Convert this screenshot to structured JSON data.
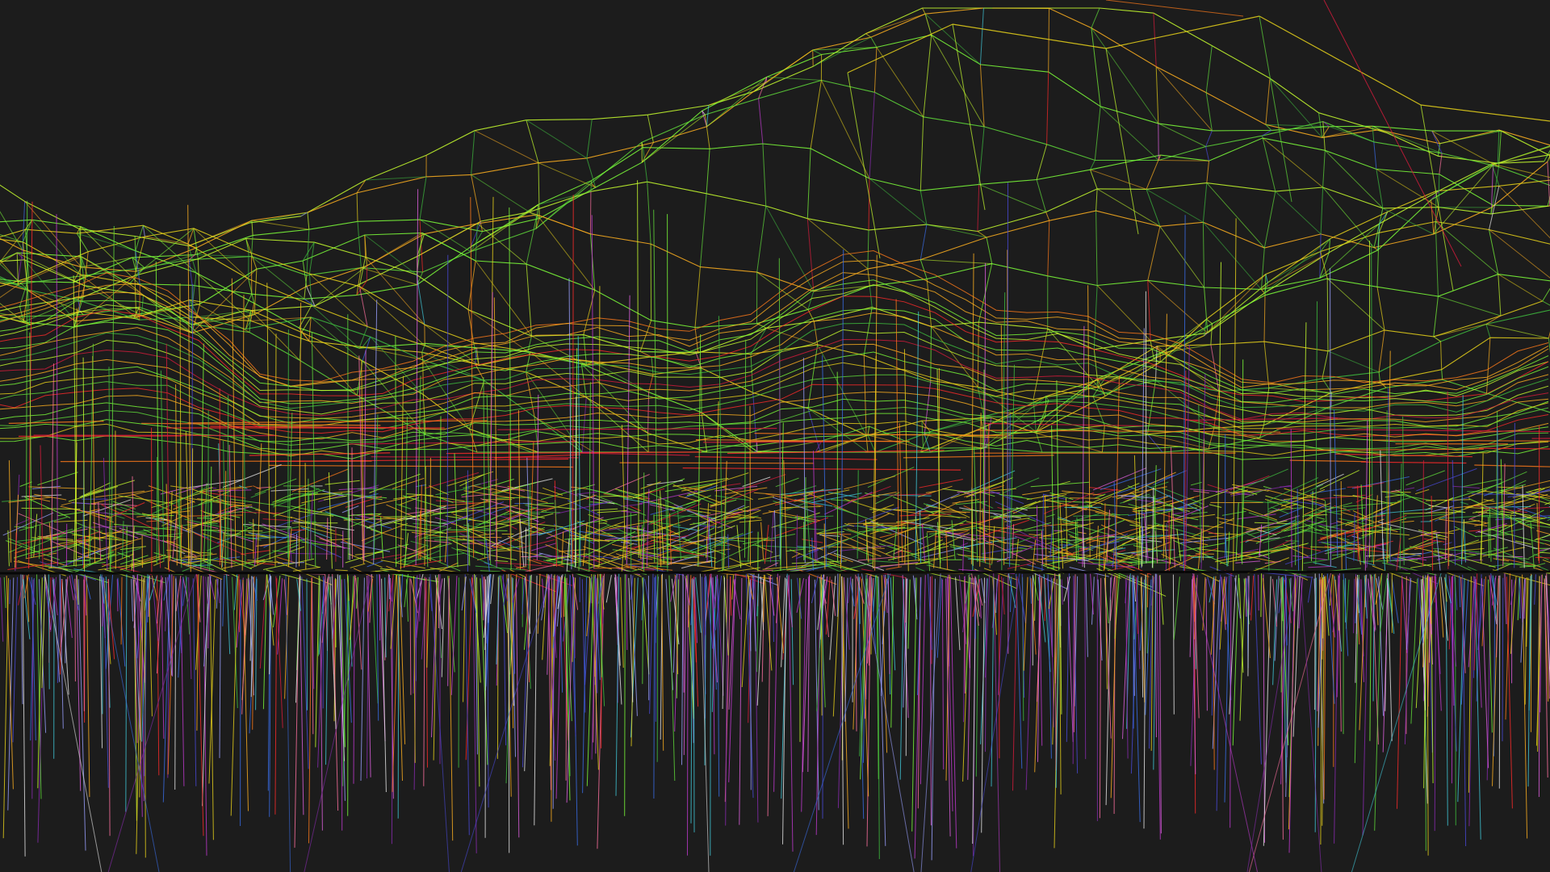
{
  "scene": {
    "background": "#1c1c1c",
    "line_colors": [
      "#7cff3a",
      "#5fd93a",
      "#3fbf3f",
      "#c8ff2e",
      "#e8d21a",
      "#ffb020",
      "#ff7a1a",
      "#ff2a2a",
      "#d81b3c",
      "#a01848",
      "#8a2bb0",
      "#c03ad0",
      "#e060e0",
      "#4a4ad8",
      "#3a6ee8",
      "#40c8d8",
      "#6ad8a8",
      "#e8e8e8",
      "#9aa0ff",
      "#ff70a0"
    ],
    "render_mode": "wireframe"
  }
}
